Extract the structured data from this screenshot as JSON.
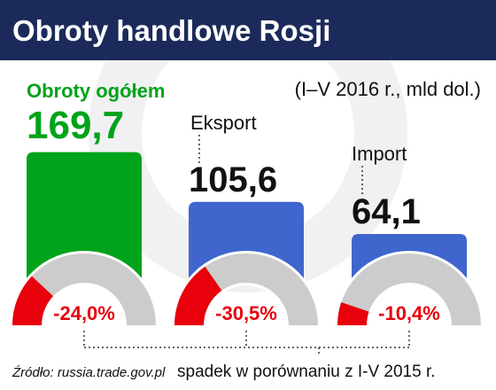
{
  "chart_data": {
    "type": "bar",
    "title": "Obroty handlowe Rosji",
    "subtitle": "(I–V 2016 r., mld dol.)",
    "categories": [
      "Obroty ogółem",
      "Eksport",
      "Import"
    ],
    "values": [
      169.7,
      105.6,
      64.1
    ],
    "value_labels": [
      "169,7",
      "105,6",
      "64,1"
    ],
    "colors": [
      "#00a31a",
      "#3f66cc",
      "#3f66cc"
    ],
    "change": {
      "values": [
        -24.0,
        -30.5,
        -10.4
      ],
      "value_labels": [
        "-24,0%",
        "-30,5%",
        "-10,4%"
      ],
      "color": "#e8000b",
      "gauge_color": "#cccccc",
      "note": "spadek w porównaniu z I-V 2015 r."
    },
    "source": "Źródło: russia.trade.gov.pl"
  }
}
